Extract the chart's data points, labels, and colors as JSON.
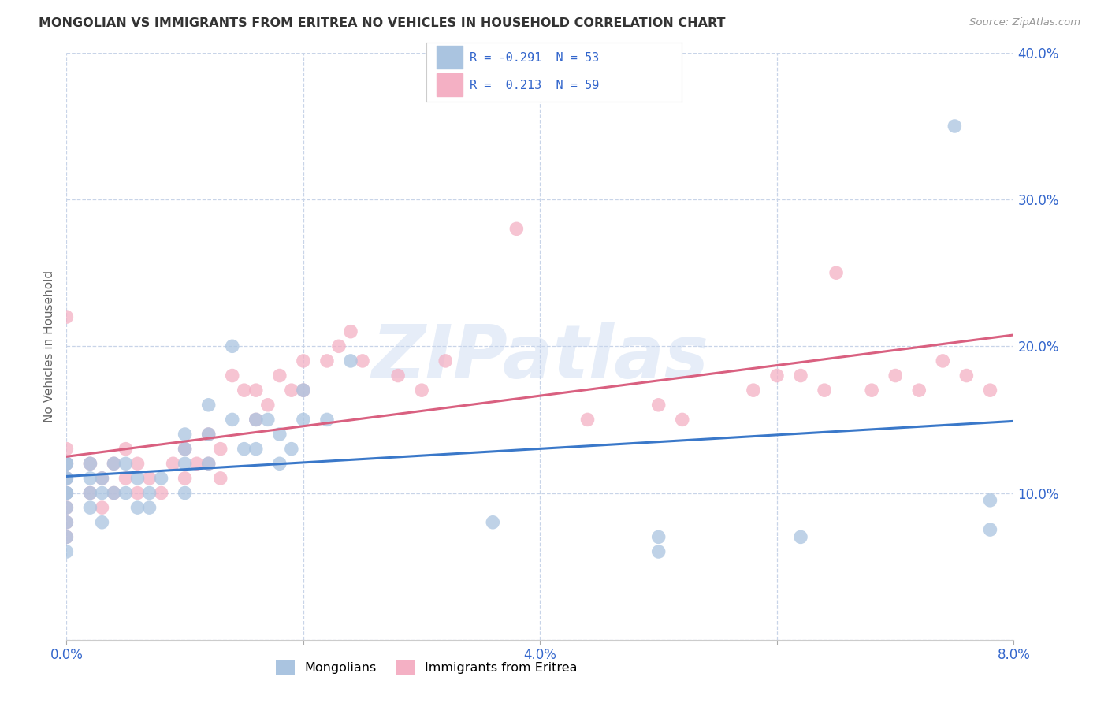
{
  "title": "MONGOLIAN VS IMMIGRANTS FROM ERITREA NO VEHICLES IN HOUSEHOLD CORRELATION CHART",
  "source": "Source: ZipAtlas.com",
  "ylabel": "No Vehicles in Household",
  "mongolian_R": -0.291,
  "mongolian_N": 53,
  "eritrea_R": 0.213,
  "eritrea_N": 59,
  "x_range": [
    0.0,
    0.08
  ],
  "y_range": [
    0.0,
    0.4
  ],
  "x_ticks": [
    0.0,
    0.02,
    0.04,
    0.06,
    0.08
  ],
  "x_tick_labels": [
    "0.0%",
    "",
    "4.0%",
    "",
    "8.0%"
  ],
  "y_ticks": [
    0.0,
    0.1,
    0.2,
    0.3,
    0.4
  ],
  "y_tick_labels": [
    "",
    "10.0%",
    "20.0%",
    "30.0%",
    "40.0%"
  ],
  "mongolian_color": "#aac4e0",
  "eritrea_color": "#f4b0c4",
  "mongolian_line_color": "#3a78c9",
  "eritrea_line_color": "#d96080",
  "background_color": "#ffffff",
  "grid_color": "#c8d4e8",
  "watermark_text": "ZIPatlas",
  "mongolian_x": [
    0.0,
    0.0,
    0.0,
    0.0,
    0.0,
    0.0,
    0.0,
    0.0,
    0.0,
    0.0,
    0.002,
    0.002,
    0.002,
    0.002,
    0.003,
    0.003,
    0.003,
    0.004,
    0.004,
    0.005,
    0.005,
    0.006,
    0.006,
    0.007,
    0.007,
    0.008,
    0.01,
    0.01,
    0.01,
    0.01,
    0.012,
    0.012,
    0.012,
    0.014,
    0.014,
    0.015,
    0.016,
    0.016,
    0.017,
    0.018,
    0.018,
    0.019,
    0.02,
    0.02,
    0.022,
    0.024,
    0.036,
    0.05,
    0.05,
    0.062,
    0.075,
    0.078,
    0.078
  ],
  "mongolian_y": [
    0.12,
    0.12,
    0.11,
    0.11,
    0.1,
    0.1,
    0.09,
    0.08,
    0.07,
    0.06,
    0.12,
    0.11,
    0.1,
    0.09,
    0.11,
    0.1,
    0.08,
    0.12,
    0.1,
    0.12,
    0.1,
    0.11,
    0.09,
    0.1,
    0.09,
    0.11,
    0.14,
    0.13,
    0.12,
    0.1,
    0.16,
    0.14,
    0.12,
    0.2,
    0.15,
    0.13,
    0.15,
    0.13,
    0.15,
    0.14,
    0.12,
    0.13,
    0.17,
    0.15,
    0.15,
    0.19,
    0.08,
    0.07,
    0.06,
    0.07,
    0.35,
    0.095,
    0.075
  ],
  "eritrea_x": [
    0.0,
    0.0,
    0.0,
    0.0,
    0.0,
    0.0,
    0.0,
    0.0,
    0.002,
    0.002,
    0.003,
    0.003,
    0.004,
    0.004,
    0.005,
    0.005,
    0.006,
    0.006,
    0.007,
    0.008,
    0.009,
    0.01,
    0.01,
    0.011,
    0.012,
    0.012,
    0.013,
    0.013,
    0.014,
    0.015,
    0.016,
    0.016,
    0.017,
    0.018,
    0.019,
    0.02,
    0.02,
    0.022,
    0.023,
    0.024,
    0.025,
    0.028,
    0.03,
    0.032,
    0.038,
    0.044,
    0.05,
    0.052,
    0.058,
    0.06,
    0.062,
    0.064,
    0.065,
    0.068,
    0.07,
    0.072,
    0.074,
    0.076,
    0.078
  ],
  "eritrea_y": [
    0.22,
    0.13,
    0.12,
    0.11,
    0.1,
    0.09,
    0.08,
    0.07,
    0.12,
    0.1,
    0.11,
    0.09,
    0.12,
    0.1,
    0.13,
    0.11,
    0.12,
    0.1,
    0.11,
    0.1,
    0.12,
    0.13,
    0.11,
    0.12,
    0.14,
    0.12,
    0.13,
    0.11,
    0.18,
    0.17,
    0.17,
    0.15,
    0.16,
    0.18,
    0.17,
    0.19,
    0.17,
    0.19,
    0.2,
    0.21,
    0.19,
    0.18,
    0.17,
    0.19,
    0.28,
    0.15,
    0.16,
    0.15,
    0.17,
    0.18,
    0.18,
    0.17,
    0.25,
    0.17,
    0.18,
    0.17,
    0.19,
    0.18,
    0.17
  ]
}
